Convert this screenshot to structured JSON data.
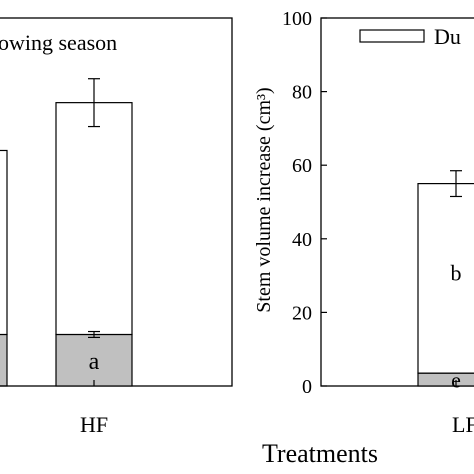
{
  "chart_data": [
    {
      "type": "bar",
      "stacked": true,
      "legend_text": "owing season",
      "categories": [
        "HF"
      ],
      "partial_bar_left_edge": true,
      "series": [
        {
          "name": "",
          "values": [
            14
          ],
          "errors": [
            0.8
          ],
          "color": "#c0c0c0",
          "labels": [
            "a"
          ]
        },
        {
          "name": "",
          "values": [
            63
          ],
          "errors": [
            6.5
          ],
          "color": "#ffffff",
          "labels": [
            ""
          ]
        }
      ],
      "ylim": [
        0,
        100
      ],
      "grid": false
    },
    {
      "type": "bar",
      "stacked": true,
      "legend_text": "Du",
      "legend_position": "top-right",
      "categories": [
        "LF"
      ],
      "ylabel": "Stem volume increase (cm³)",
      "xlabel": "Treatments",
      "yticks": [
        0,
        20,
        40,
        60,
        80,
        100
      ],
      "ylim": [
        0,
        100
      ],
      "series": [
        {
          "name": "",
          "values": [
            3.5
          ],
          "errors": [
            0
          ],
          "color": "#c0c0c0",
          "labels": [
            "e"
          ]
        },
        {
          "name": "Du",
          "values": [
            51.5
          ],
          "errors": [
            3.5
          ],
          "color": "#ffffff",
          "labels": [
            "b"
          ]
        }
      ],
      "grid": false
    }
  ]
}
